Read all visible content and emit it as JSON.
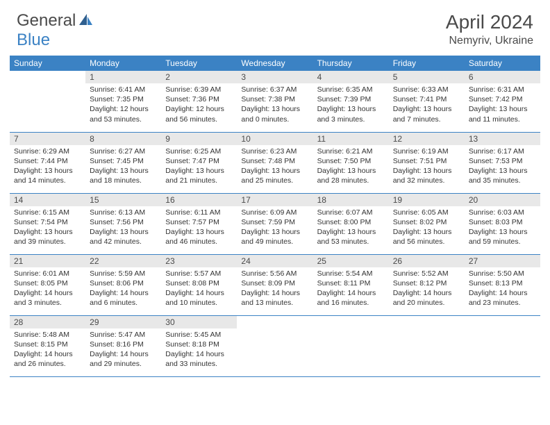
{
  "logo": {
    "general": "General",
    "blue": "Blue"
  },
  "title": "April 2024",
  "location": "Nemyriv, Ukraine",
  "colors": {
    "header_bg": "#3b82c4",
    "header_text": "#ffffff",
    "daynum_bg": "#e8e8e8",
    "text": "#333333",
    "rule": "#3b82c4"
  },
  "day_headers": [
    "Sunday",
    "Monday",
    "Tuesday",
    "Wednesday",
    "Thursday",
    "Friday",
    "Saturday"
  ],
  "weeks": [
    [
      null,
      {
        "n": "1",
        "sr": "6:41 AM",
        "ss": "7:35 PM",
        "dl": "12 hours and 53 minutes."
      },
      {
        "n": "2",
        "sr": "6:39 AM",
        "ss": "7:36 PM",
        "dl": "12 hours and 56 minutes."
      },
      {
        "n": "3",
        "sr": "6:37 AM",
        "ss": "7:38 PM",
        "dl": "13 hours and 0 minutes."
      },
      {
        "n": "4",
        "sr": "6:35 AM",
        "ss": "7:39 PM",
        "dl": "13 hours and 3 minutes."
      },
      {
        "n": "5",
        "sr": "6:33 AM",
        "ss": "7:41 PM",
        "dl": "13 hours and 7 minutes."
      },
      {
        "n": "6",
        "sr": "6:31 AM",
        "ss": "7:42 PM",
        "dl": "13 hours and 11 minutes."
      }
    ],
    [
      {
        "n": "7",
        "sr": "6:29 AM",
        "ss": "7:44 PM",
        "dl": "13 hours and 14 minutes."
      },
      {
        "n": "8",
        "sr": "6:27 AM",
        "ss": "7:45 PM",
        "dl": "13 hours and 18 minutes."
      },
      {
        "n": "9",
        "sr": "6:25 AM",
        "ss": "7:47 PM",
        "dl": "13 hours and 21 minutes."
      },
      {
        "n": "10",
        "sr": "6:23 AM",
        "ss": "7:48 PM",
        "dl": "13 hours and 25 minutes."
      },
      {
        "n": "11",
        "sr": "6:21 AM",
        "ss": "7:50 PM",
        "dl": "13 hours and 28 minutes."
      },
      {
        "n": "12",
        "sr": "6:19 AM",
        "ss": "7:51 PM",
        "dl": "13 hours and 32 minutes."
      },
      {
        "n": "13",
        "sr": "6:17 AM",
        "ss": "7:53 PM",
        "dl": "13 hours and 35 minutes."
      }
    ],
    [
      {
        "n": "14",
        "sr": "6:15 AM",
        "ss": "7:54 PM",
        "dl": "13 hours and 39 minutes."
      },
      {
        "n": "15",
        "sr": "6:13 AM",
        "ss": "7:56 PM",
        "dl": "13 hours and 42 minutes."
      },
      {
        "n": "16",
        "sr": "6:11 AM",
        "ss": "7:57 PM",
        "dl": "13 hours and 46 minutes."
      },
      {
        "n": "17",
        "sr": "6:09 AM",
        "ss": "7:59 PM",
        "dl": "13 hours and 49 minutes."
      },
      {
        "n": "18",
        "sr": "6:07 AM",
        "ss": "8:00 PM",
        "dl": "13 hours and 53 minutes."
      },
      {
        "n": "19",
        "sr": "6:05 AM",
        "ss": "8:02 PM",
        "dl": "13 hours and 56 minutes."
      },
      {
        "n": "20",
        "sr": "6:03 AM",
        "ss": "8:03 PM",
        "dl": "13 hours and 59 minutes."
      }
    ],
    [
      {
        "n": "21",
        "sr": "6:01 AM",
        "ss": "8:05 PM",
        "dl": "14 hours and 3 minutes."
      },
      {
        "n": "22",
        "sr": "5:59 AM",
        "ss": "8:06 PM",
        "dl": "14 hours and 6 minutes."
      },
      {
        "n": "23",
        "sr": "5:57 AM",
        "ss": "8:08 PM",
        "dl": "14 hours and 10 minutes."
      },
      {
        "n": "24",
        "sr": "5:56 AM",
        "ss": "8:09 PM",
        "dl": "14 hours and 13 minutes."
      },
      {
        "n": "25",
        "sr": "5:54 AM",
        "ss": "8:11 PM",
        "dl": "14 hours and 16 minutes."
      },
      {
        "n": "26",
        "sr": "5:52 AM",
        "ss": "8:12 PM",
        "dl": "14 hours and 20 minutes."
      },
      {
        "n": "27",
        "sr": "5:50 AM",
        "ss": "8:13 PM",
        "dl": "14 hours and 23 minutes."
      }
    ],
    [
      {
        "n": "28",
        "sr": "5:48 AM",
        "ss": "8:15 PM",
        "dl": "14 hours and 26 minutes."
      },
      {
        "n": "29",
        "sr": "5:47 AM",
        "ss": "8:16 PM",
        "dl": "14 hours and 29 minutes."
      },
      {
        "n": "30",
        "sr": "5:45 AM",
        "ss": "8:18 PM",
        "dl": "14 hours and 33 minutes."
      },
      null,
      null,
      null,
      null
    ]
  ],
  "labels": {
    "sunrise": "Sunrise:",
    "sunset": "Sunset:",
    "daylight": "Daylight:"
  }
}
